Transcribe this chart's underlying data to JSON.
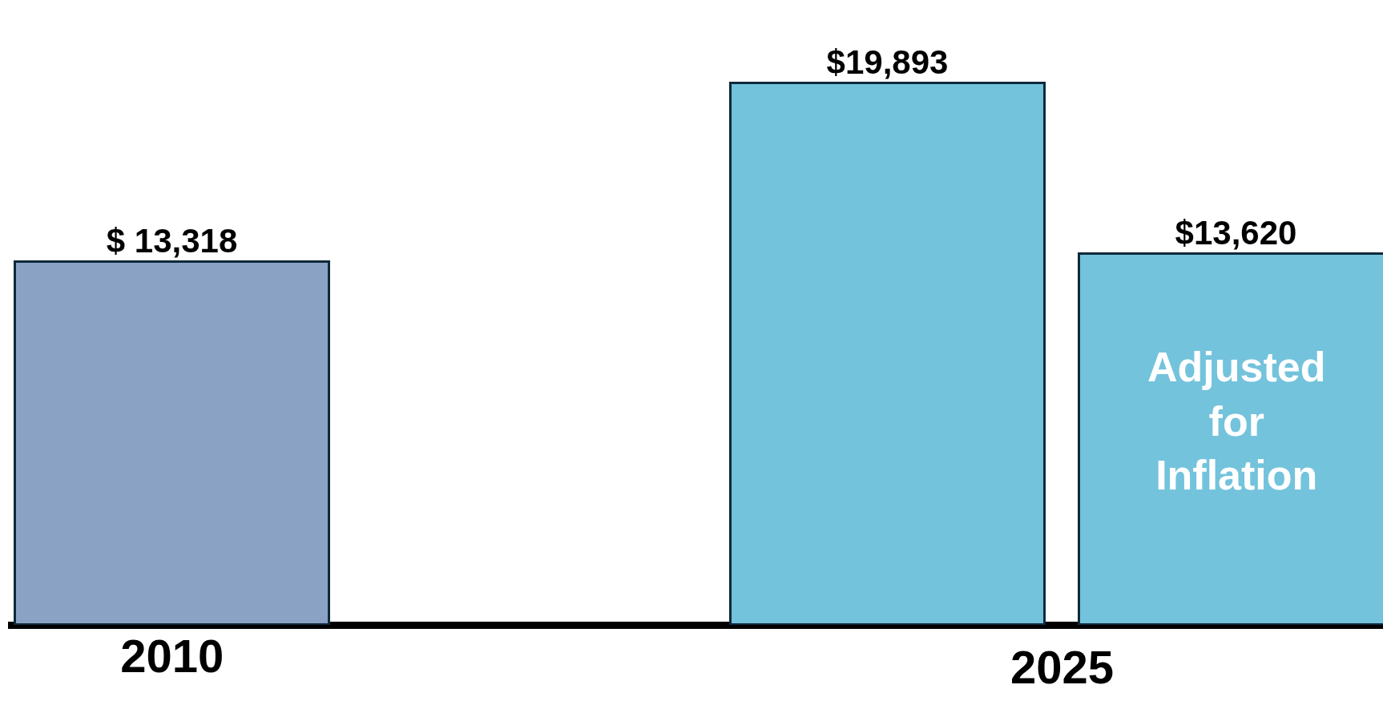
{
  "chart_data": {
    "type": "bar",
    "categories": [
      "2010",
      null,
      null
    ],
    "values": [
      13318,
      19893,
      13620
    ],
    "colors": [
      "#8aa3c4",
      "#73c3dc",
      "#73c3dc"
    ],
    "value_labels": [
      "$ 13,318",
      "$19,893",
      "$13,620"
    ],
    "annotations": [
      "2025",
      "Adjusted for Inflation"
    ],
    "grid": false,
    "legend": false
  }
}
